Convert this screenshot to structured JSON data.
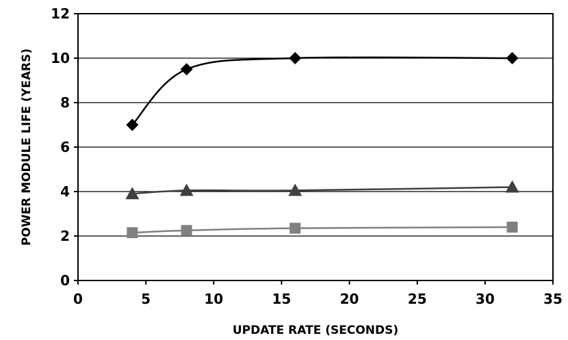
{
  "chart_data": {
    "type": "line",
    "title": "",
    "xlabel": "UPDATE RATE (SECONDS)",
    "ylabel": "POWER MODULE LIFE (YEARS)",
    "xlim": [
      0,
      35
    ],
    "ylim": [
      0,
      12
    ],
    "x_ticks": [
      "0",
      "5",
      "10",
      "15",
      "20",
      "25",
      "30",
      "35"
    ],
    "y_ticks": [
      "0",
      "2",
      "4",
      "6",
      "8",
      "10",
      "12"
    ],
    "grid": "horizontal",
    "legend": "none",
    "x": [
      4,
      8,
      16,
      32
    ],
    "series": [
      {
        "marker": "diamond",
        "color": "#000000",
        "values": [
          7.0,
          9.5,
          10.0,
          10.0
        ]
      },
      {
        "marker": "triangle",
        "color": "#404040",
        "values": [
          3.9,
          4.05,
          4.05,
          4.2
        ]
      },
      {
        "marker": "square",
        "color": "#808080",
        "values": [
          2.15,
          2.25,
          2.35,
          2.4
        ]
      }
    ]
  }
}
